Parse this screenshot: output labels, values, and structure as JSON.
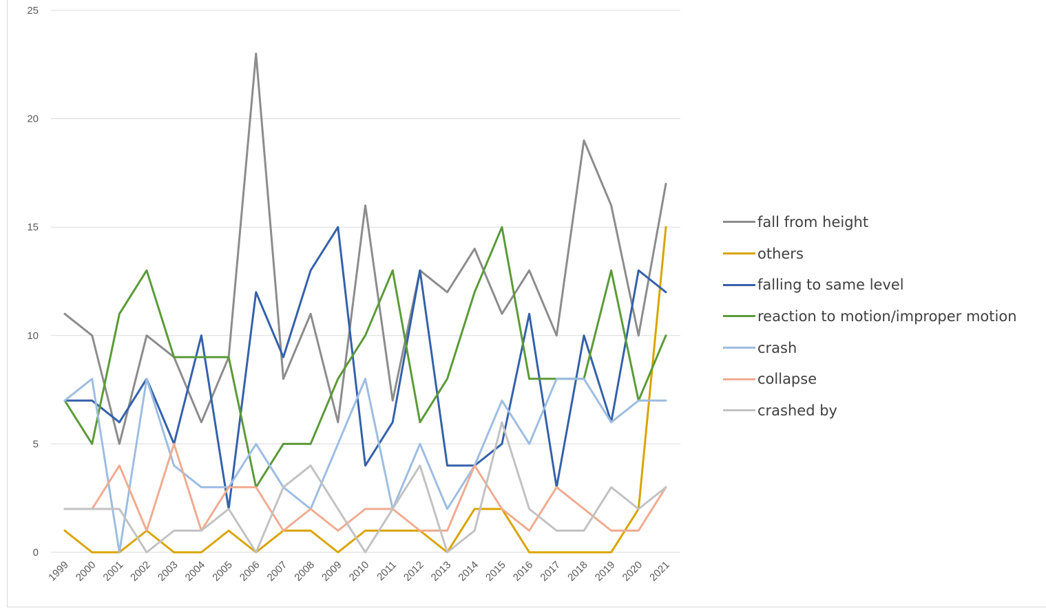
{
  "chart_data": {
    "type": "line",
    "title": "",
    "xlabel": "",
    "ylabel": "",
    "ylim": [
      0,
      25
    ],
    "yticks": [
      "0",
      "5",
      "10",
      "15",
      "20",
      "25"
    ],
    "grid": "horizontal",
    "legend_position": "right",
    "categories": [
      "1999",
      "2000",
      "2001",
      "2002",
      "2003",
      "2004",
      "2005",
      "2006",
      "2007",
      "2008",
      "2009",
      "2010",
      "2011",
      "2012",
      "2013",
      "2014",
      "2015",
      "2016",
      "2017",
      "2018",
      "2019",
      "2020",
      "2021"
    ],
    "series": [
      {
        "name": "fall from height",
        "color": "#8c8c8c",
        "values": [
          11,
          10,
          5,
          10,
          9,
          6,
          9,
          23,
          8,
          11,
          6,
          16,
          7,
          13,
          12,
          14,
          11,
          13,
          10,
          19,
          16,
          10,
          17
        ]
      },
      {
        "name": "others",
        "color": "#d9a400",
        "values": [
          1,
          0,
          0,
          1,
          0,
          0,
          1,
          0,
          1,
          1,
          0,
          1,
          1,
          1,
          0,
          2,
          2,
          0,
          0,
          0,
          0,
          2,
          15
        ]
      },
      {
        "name": "falling to same level",
        "color": "#3461a9",
        "values": [
          7,
          7,
          6,
          8,
          5,
          10,
          2,
          12,
          9,
          13,
          15,
          4,
          6,
          13,
          4,
          4,
          5,
          11,
          3,
          10,
          6,
          13,
          12
        ]
      },
      {
        "name": "reaction to motion/improper motion",
        "color": "#5b9a38",
        "values": [
          7,
          5,
          11,
          13,
          9,
          9,
          9,
          3,
          5,
          5,
          8,
          10,
          13,
          6,
          8,
          12,
          15,
          8,
          8,
          8,
          13,
          7,
          10
        ]
      },
      {
        "name": "crash",
        "color": "#9dbde2",
        "values": [
          7,
          8,
          0,
          8,
          4,
          3,
          3,
          5,
          3,
          2,
          5,
          8,
          2,
          5,
          2,
          4,
          7,
          5,
          8,
          8,
          6,
          7,
          7
        ]
      },
      {
        "name": "collapse",
        "color": "#f0ab90",
        "values": [
          2,
          2,
          4,
          1,
          5,
          1,
          3,
          3,
          1,
          2,
          1,
          2,
          2,
          1,
          1,
          4,
          2,
          1,
          3,
          2,
          1,
          1,
          3
        ]
      },
      {
        "name": "crashed by",
        "color": "#c2c2c2",
        "values": [
          2,
          2,
          2,
          0,
          1,
          1,
          2,
          0,
          3,
          4,
          2,
          0,
          2,
          4,
          0,
          1,
          6,
          2,
          1,
          1,
          3,
          2,
          3
        ]
      }
    ]
  }
}
